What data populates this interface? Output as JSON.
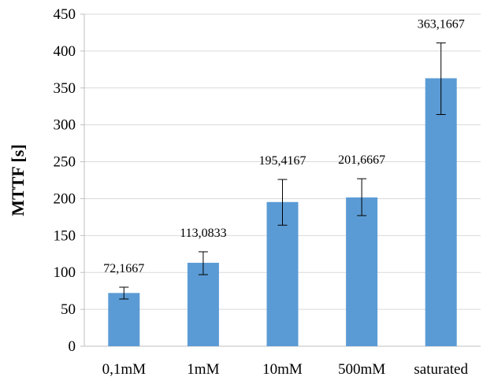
{
  "chart_data": {
    "type": "bar",
    "title": "",
    "xlabel": "",
    "ylabel": "MTTF [s]",
    "ylim": [
      0,
      450
    ],
    "yticks": [
      0,
      50,
      100,
      150,
      200,
      250,
      300,
      350,
      400,
      450
    ],
    "ytick_labels": [
      "0",
      "50",
      "100",
      "150",
      "200",
      "250",
      "300",
      "350",
      "400",
      "450"
    ],
    "grid": "horizontal",
    "legend": "none",
    "bar_color": "#5b9bd5",
    "categories": [
      "0,1mM",
      "1mM",
      "10mM",
      "500mM",
      "saturated"
    ],
    "values": [
      72.1667,
      113.0833,
      195.4167,
      201.6667,
      363.1667
    ],
    "data_labels": [
      "72,1667",
      "113,0833",
      "195,4167",
      "201,6667",
      "363,1667"
    ],
    "error_low": [
      64,
      97,
      164,
      177,
      314
    ],
    "error_high": [
      80,
      128,
      226,
      227,
      411
    ]
  }
}
